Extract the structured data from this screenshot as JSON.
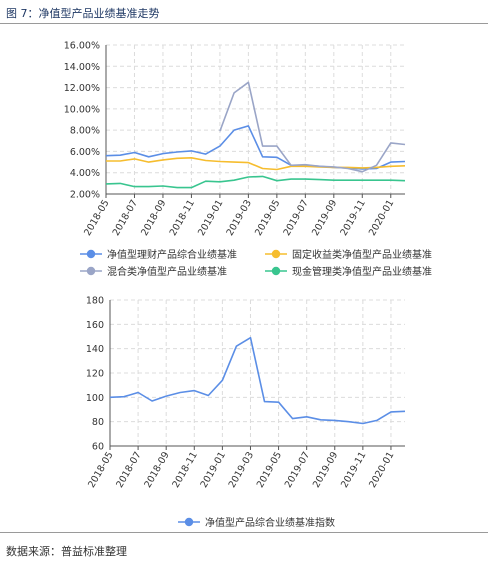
{
  "figure": {
    "title": "图 7：净值型产品业绩基准走势",
    "source": "数据来源：普益标准整理"
  },
  "colors": {
    "blue": "#5b8ee6",
    "orange": "#f6bd2e",
    "gray": "#9aa5c7",
    "green": "#39c58f",
    "grid": "#dcdcdc",
    "axis": "#555555"
  },
  "chart_data": [
    {
      "type": "line",
      "x": [
        "2018-05",
        "2018-06",
        "2018-07",
        "2018-08",
        "2018-09",
        "2018-10",
        "2018-11",
        "2018-12",
        "2019-01",
        "2019-02",
        "2019-03",
        "2019-04",
        "2019-05",
        "2019-06",
        "2019-07",
        "2019-08",
        "2019-09",
        "2019-10",
        "2019-11",
        "2019-12",
        "2020-01",
        "2020-02"
      ],
      "x_tick_labels": [
        "2018-05",
        "2018-07",
        "2018-09",
        "2018-11",
        "2019-01",
        "2019-03",
        "2019-05",
        "2019-07",
        "2019-09",
        "2019-11",
        "2020-01"
      ],
      "y_tick_labels": [
        "2.00%",
        "4.00%",
        "6.00%",
        "8.00%",
        "10.00%",
        "12.00%",
        "14.00%",
        "16.00%"
      ],
      "ylim": [
        2,
        16
      ],
      "grid": true,
      "legend_position": "bottom",
      "series": [
        {
          "name": "净值型理财产品综合业绩基准",
          "color": "#5b8ee6",
          "values": [
            5.6,
            5.65,
            5.9,
            5.5,
            5.8,
            5.95,
            6.05,
            5.75,
            6.5,
            8.0,
            8.4,
            5.5,
            5.45,
            4.7,
            4.7,
            4.6,
            4.5,
            4.45,
            4.35,
            4.4,
            5.0,
            5.05
          ]
        },
        {
          "name": "固定收益类净值型产品业绩基准",
          "color": "#f6bd2e",
          "values": [
            5.1,
            5.1,
            5.3,
            5.0,
            5.2,
            5.35,
            5.4,
            5.15,
            5.05,
            5.0,
            4.95,
            4.4,
            4.3,
            4.6,
            4.6,
            4.55,
            4.5,
            4.5,
            4.45,
            4.5,
            4.6,
            4.65
          ]
        },
        {
          "name": "混合类净值型产品业绩基准",
          "color": "#9aa5c7",
          "values": [
            null,
            null,
            null,
            null,
            null,
            null,
            null,
            null,
            7.9,
            11.5,
            12.5,
            6.5,
            6.5,
            4.7,
            4.75,
            4.6,
            4.55,
            4.4,
            4.1,
            4.7,
            6.8,
            6.65
          ]
        },
        {
          "name": "现金管理类净值型产品业绩基准",
          "color": "#39c58f",
          "values": [
            2.95,
            3.0,
            2.7,
            2.7,
            2.75,
            2.6,
            2.6,
            3.2,
            3.15,
            3.3,
            3.6,
            3.65,
            3.25,
            3.4,
            3.4,
            3.35,
            3.3,
            3.3,
            3.3,
            3.3,
            3.3,
            3.25
          ]
        }
      ]
    },
    {
      "type": "line",
      "x": [
        "2018-05",
        "2018-06",
        "2018-07",
        "2018-08",
        "2018-09",
        "2018-10",
        "2018-11",
        "2018-12",
        "2019-01",
        "2019-02",
        "2019-03",
        "2019-04",
        "2019-05",
        "2019-06",
        "2019-07",
        "2019-08",
        "2019-09",
        "2019-10",
        "2019-11",
        "2019-12",
        "2020-01",
        "2020-02"
      ],
      "x_tick_labels": [
        "2018-05",
        "2018-07",
        "2018-09",
        "2018-11",
        "2019-01",
        "2019-03",
        "2019-05",
        "2019-07",
        "2019-09",
        "2019-11",
        "2020-01"
      ],
      "y_tick_labels": [
        "60",
        "80",
        "100",
        "120",
        "140",
        "160",
        "180"
      ],
      "ylim": [
        60,
        180
      ],
      "grid": true,
      "legend_position": "bottom",
      "series": [
        {
          "name": "净值型产品综合业绩基准指数",
          "color": "#5b8ee6",
          "values": [
            100,
            100.5,
            104,
            97,
            101,
            104,
            105.5,
            101.5,
            114,
            142,
            149,
            96.5,
            96,
            82.5,
            84,
            81.5,
            81,
            80,
            78.5,
            81,
            88,
            88.5
          ]
        }
      ]
    }
  ]
}
